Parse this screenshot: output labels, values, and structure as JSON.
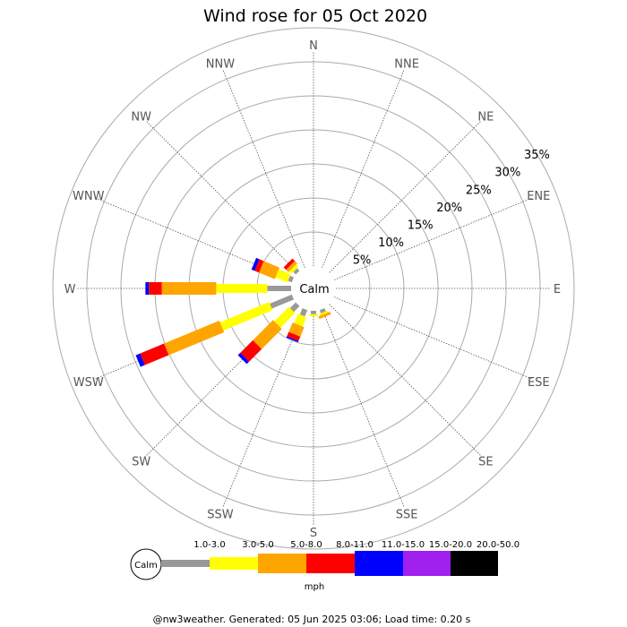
{
  "chart_data": {
    "type": "windrose",
    "title": "Wind rose for 05 Oct 2020",
    "directions": [
      "N",
      "NNE",
      "NE",
      "ENE",
      "E",
      "ESE",
      "SE",
      "SSE",
      "S",
      "SSW",
      "SW",
      "WSW",
      "W",
      "WNW",
      "NW",
      "NNW"
    ],
    "rings": [
      "5%",
      "10%",
      "15%",
      "20%",
      "25%",
      "30%",
      "35%"
    ],
    "calm_label": "Calm",
    "units": "mph",
    "speed_bins": [
      {
        "label": "1.0-3.0",
        "color": "#999999"
      },
      {
        "label": "3.0-5.0",
        "color": "#ffff00"
      },
      {
        "label": "5.0-8.0",
        "color": "#ffa500"
      },
      {
        "label": "8.0-11.0",
        "color": "#ff0000"
      },
      {
        "label": "11.0-15.0",
        "color": "#0000ff"
      },
      {
        "label": "15.0-20.0",
        "color": "#a020f0"
      },
      {
        "label": "20.0-50.0",
        "color": "#000000"
      }
    ],
    "series": [
      {
        "direction": "SSE",
        "values": [
          0.5,
          0.3,
          0.4,
          0,
          0,
          0,
          0
        ]
      },
      {
        "direction": "S",
        "values": [
          0.5,
          0.3,
          0,
          0,
          0,
          0,
          0
        ]
      },
      {
        "direction": "SSW",
        "values": [
          1.0,
          1.5,
          1.5,
          0.7,
          0.2,
          0,
          0
        ]
      },
      {
        "direction": "SW",
        "values": [
          1.2,
          3.0,
          4.2,
          2.6,
          0.5,
          0,
          0
        ]
      },
      {
        "direction": "WSW",
        "values": [
          3.5,
          7.8,
          8.8,
          3.8,
          0.7,
          0,
          0
        ]
      },
      {
        "direction": "W",
        "values": [
          3.5,
          7.5,
          8.0,
          1.9,
          0.5,
          0,
          0
        ]
      },
      {
        "direction": "WNW",
        "values": [
          0.6,
          1.9,
          2.5,
          0.7,
          0.5,
          0,
          0
        ]
      },
      {
        "direction": "NW",
        "values": [
          0.5,
          0.5,
          0.5,
          0.5,
          0,
          0,
          0
        ]
      }
    ]
  },
  "footer": "@nw3weather. Generated: 05 Jun 2025 03:06; Load time: 0.20 s"
}
